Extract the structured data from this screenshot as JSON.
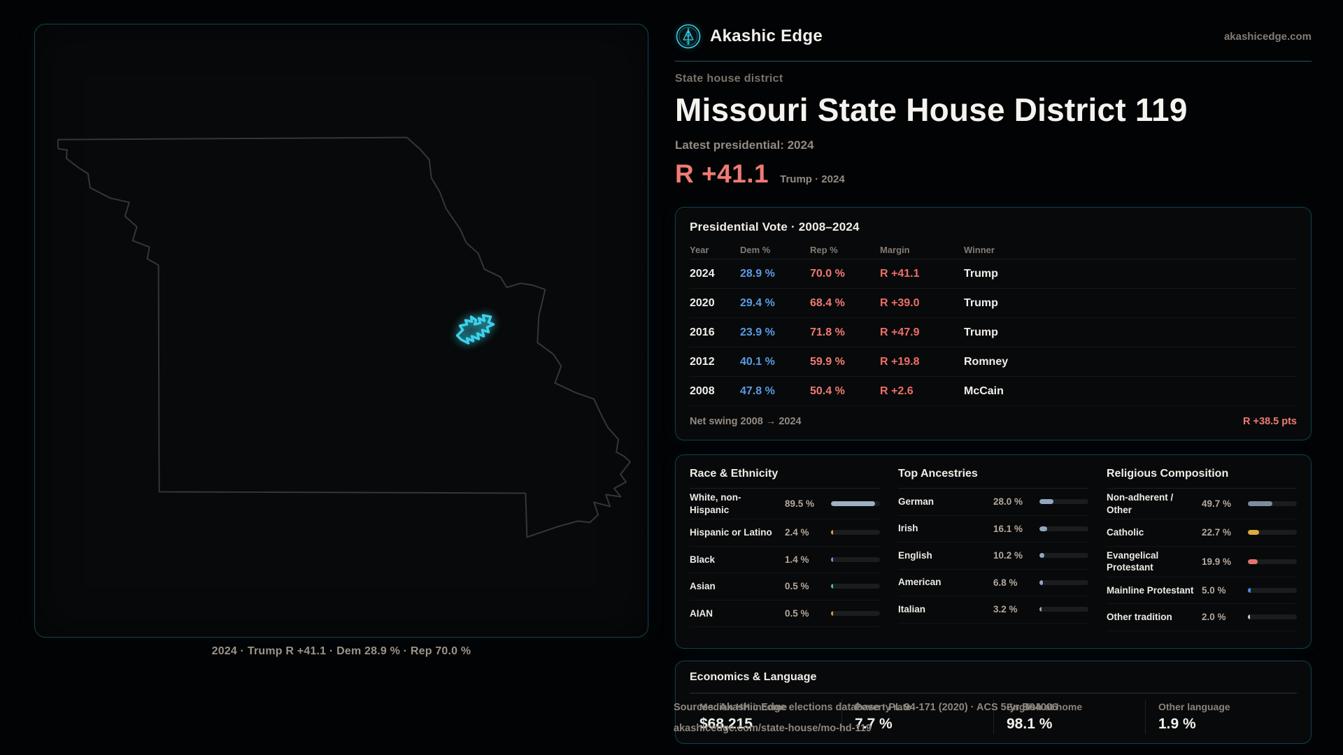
{
  "brand": {
    "name": "Akashic Edge",
    "domain": "akashicedge.com"
  },
  "page": {
    "eyebrow": "State house district",
    "title": "Missouri State House District 119",
    "subtitle": "Latest presidential: 2024",
    "headline_margin": "R +41.1",
    "headline_context": "Trump · 2024"
  },
  "map": {
    "caption": "2024 · Trump R +41.1 · Dem 28.9 % · Rep 70.0 %"
  },
  "vote_table": {
    "title": "Presidential Vote · 2008–2024",
    "columns": [
      "Year",
      "Dem %",
      "Rep %",
      "Margin",
      "Winner"
    ],
    "rows": [
      {
        "year": "2024",
        "dem": "28.9 %",
        "rep": "70.0 %",
        "margin": "R +41.1",
        "winner": "Trump"
      },
      {
        "year": "2020",
        "dem": "29.4 %",
        "rep": "68.4 %",
        "margin": "R +39.0",
        "winner": "Trump"
      },
      {
        "year": "2016",
        "dem": "23.9 %",
        "rep": "71.8 %",
        "margin": "R +47.9",
        "winner": "Trump"
      },
      {
        "year": "2012",
        "dem": "40.1 %",
        "rep": "59.9 %",
        "margin": "R +19.8",
        "winner": "Romney"
      },
      {
        "year": "2008",
        "dem": "47.8 %",
        "rep": "50.4 %",
        "margin": "R +2.6",
        "winner": "McCain"
      }
    ],
    "footer_label": "Net swing 2008 → 2024",
    "footer_value": "R +38.5 pts"
  },
  "demographics": {
    "panels": [
      {
        "title": "Race & Ethnicity",
        "rows": [
          {
            "label": "White, non-Hispanic",
            "value": "89.5 %",
            "pct": 89.5,
            "color": "#9db0c6"
          },
          {
            "label": "Hispanic or Latino",
            "value": "2.4 %",
            "pct": 2.4,
            "color": "#e3a23c"
          },
          {
            "label": "Black",
            "value": "1.4 %",
            "pct": 1.4,
            "color": "#8a82f2"
          },
          {
            "label": "Asian",
            "value": "0.5 %",
            "pct": 0.5,
            "color": "#3fc9a1"
          },
          {
            "label": "AIAN",
            "value": "0.5 %",
            "pct": 0.5,
            "color": "#e3953c"
          }
        ]
      },
      {
        "title": "Top Ancestries",
        "rows": [
          {
            "label": "German",
            "value": "28.0 %",
            "pct": 28.0,
            "color": "#93a7c1"
          },
          {
            "label": "Irish",
            "value": "16.1 %",
            "pct": 16.1,
            "color": "#93a7c1"
          },
          {
            "label": "English",
            "value": "10.2 %",
            "pct": 10.2,
            "color": "#93a7c1"
          },
          {
            "label": "American",
            "value": "6.8 %",
            "pct": 6.8,
            "color": "#93a7c1"
          },
          {
            "label": "Italian",
            "value": "3.2 %",
            "pct": 3.2,
            "color": "#93a7c1"
          }
        ]
      },
      {
        "title": "Religious Composition",
        "rows": [
          {
            "label": "Non-adherent / Other",
            "value": "49.7 %",
            "pct": 49.7,
            "color": "#7e8b9f"
          },
          {
            "label": "Catholic",
            "value": "22.7 %",
            "pct": 22.7,
            "color": "#ddab3c"
          },
          {
            "label": "Evangelical Protestant",
            "value": "19.9 %",
            "pct": 19.9,
            "color": "#e4756c"
          },
          {
            "label": "Mainline Protestant",
            "value": "5.0 %",
            "pct": 5.0,
            "color": "#4a8ee8"
          },
          {
            "label": "Other tradition",
            "value": "2.0 %",
            "pct": 2.0,
            "color": "#cfcfcf"
          }
        ]
      }
    ]
  },
  "economics": {
    "title": "Economics & Language",
    "stats": [
      {
        "label": "Median HH income",
        "value": "$68,215"
      },
      {
        "label": "Poverty rate",
        "value": "7.7 %"
      },
      {
        "label": "English at home",
        "value": "98.1 %"
      },
      {
        "label": "Other language",
        "value": "1.9 %"
      }
    ]
  },
  "footer": {
    "line1": "Sources: Akashic Edge elections database · PL 94-171 (2020) · ACS 5-yr B04006",
    "line2": "akashicedge.com/state-house/mo-hd-119"
  },
  "colors": {
    "dem": "#5a9be3",
    "rep": "#ee7b74",
    "accent": "#3bd2ea"
  }
}
